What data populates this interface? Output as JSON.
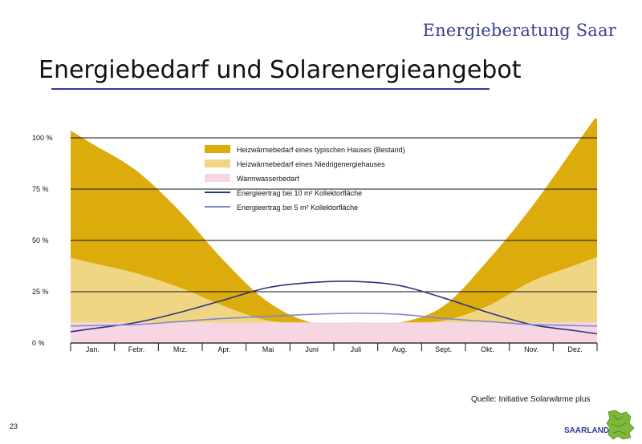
{
  "header": {
    "brand": "Energieberatung Saar",
    "title": "Energiebedarf und Solarenergieangebot"
  },
  "footer": {
    "source": "Quelle: Initiative Solarwärme plus",
    "page_number": "23",
    "logo_text": "SAARLAND"
  },
  "chart_data": {
    "type": "area",
    "title": "",
    "xlabel": "",
    "ylabel": "",
    "ylim": [
      0,
      100
    ],
    "y_ticks": [
      "0 %",
      "25 %",
      "50 %",
      "75 %",
      "100 %"
    ],
    "y_tick_values": [
      0,
      25,
      50,
      75,
      100
    ],
    "categories": [
      "Jan.",
      "Febr.",
      "Mrz.",
      "Apr.",
      "Mai",
      "Juni",
      "Juli",
      "Aug.",
      "Sept.",
      "Okt.",
      "Nov.",
      "Dez."
    ],
    "grid": "horizontal",
    "legend_position": "top-center",
    "series": [
      {
        "name": "Heizwärmebedarf eines typischen Hauses (Bestand)",
        "kind": "area",
        "color": "#dcab0c",
        "values": [
          97,
          84,
          64,
          40,
          20,
          10,
          10,
          10,
          18,
          40,
          66,
          96
        ]
      },
      {
        "name": "Heizwärmebedarf eines Niedrigenergiehauses",
        "kind": "area",
        "color": "#f0d684",
        "values": [
          39,
          34,
          27,
          18,
          11,
          10,
          10,
          10,
          11,
          18,
          30,
          38
        ]
      },
      {
        "name": "Warmwasserbedarf",
        "kind": "area",
        "color": "#f5d6e2",
        "values": [
          10,
          10,
          10,
          10,
          10,
          10,
          10,
          10,
          10,
          10,
          10,
          10
        ]
      },
      {
        "name": "Energieertrag bei 10 m² Kollektorfläche",
        "kind": "line",
        "color": "#2a3580",
        "values": [
          7,
          10,
          15,
          21,
          27,
          29.5,
          30,
          28,
          22,
          15,
          9,
          6
        ]
      },
      {
        "name": "Energieertrag bei 5 m² Kollektorfläche",
        "kind": "line",
        "color": "#7f86cc",
        "values": [
          8.5,
          9,
          10.5,
          12,
          13,
          14,
          14.5,
          14,
          12,
          10.5,
          9,
          8.5
        ]
      }
    ]
  }
}
